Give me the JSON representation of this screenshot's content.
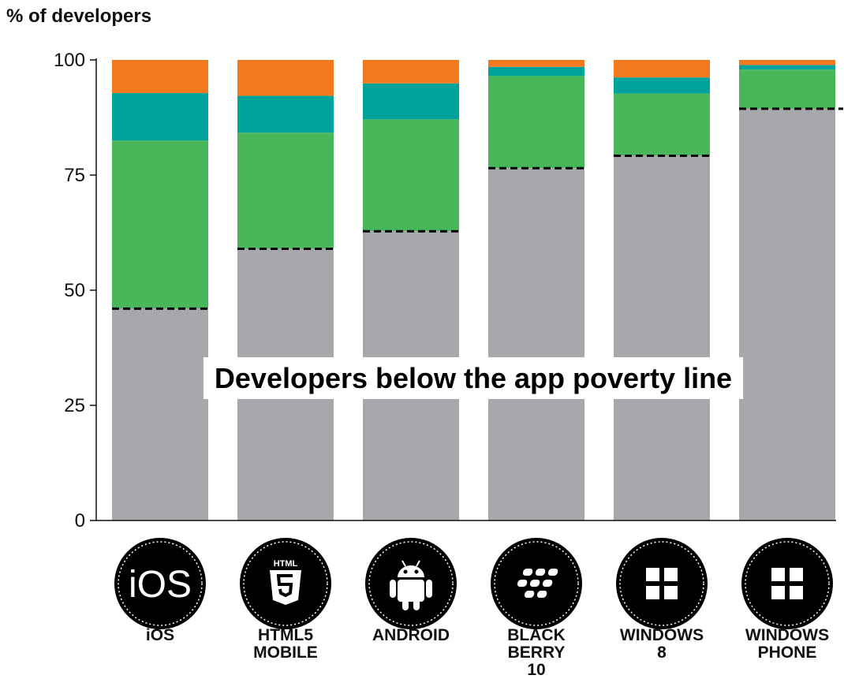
{
  "chart_data": {
    "type": "bar",
    "stacked": true,
    "ylabel": "% of developers",
    "ylim": [
      0,
      100
    ],
    "yticks": [
      0,
      25,
      50,
      75,
      100
    ],
    "grid": false,
    "legend": "none",
    "categories": [
      {
        "label_lines": [
          "iOS"
        ],
        "icon": "ios-logo-icon",
        "badge_text": "iOS"
      },
      {
        "label_lines": [
          "HTML5",
          "MOBILE"
        ],
        "icon": "html5-logo-icon",
        "badge_text": "HTML"
      },
      {
        "label_lines": [
          "ANDROID"
        ],
        "icon": "android-logo-icon"
      },
      {
        "label_lines": [
          "BLACK",
          "BERRY",
          "10"
        ],
        "icon": "blackberry-logo-icon"
      },
      {
        "label_lines": [
          "WINDOWS",
          "8"
        ],
        "icon": "windows-logo-icon"
      },
      {
        "label_lines": [
          "WINDOWS",
          "PHONE"
        ],
        "icon": "windows-logo-icon"
      }
    ],
    "series": [
      {
        "color": "#a6a8ab",
        "values": [
          46,
          59,
          62.8,
          76.5,
          79.2,
          89.4
        ]
      },
      {
        "color": "#47b75a",
        "values": [
          36.5,
          25.2,
          24.3,
          20,
          13.5,
          8.5
        ]
      },
      {
        "color": "#00a39b",
        "values": [
          10.3,
          8,
          7.8,
          2,
          3.5,
          1
        ]
      },
      {
        "color": "#f47a20",
        "values": [
          7.2,
          7.8,
          5.1,
          1.5,
          3.8,
          1.1
        ]
      }
    ],
    "poverty_line": {
      "values": [
        46,
        59,
        62.8,
        76.5,
        79.2,
        89.4
      ]
    },
    "annotation": "Developers below the app poverty line",
    "axis_color": "#111111",
    "dash_color": "#000000"
  }
}
